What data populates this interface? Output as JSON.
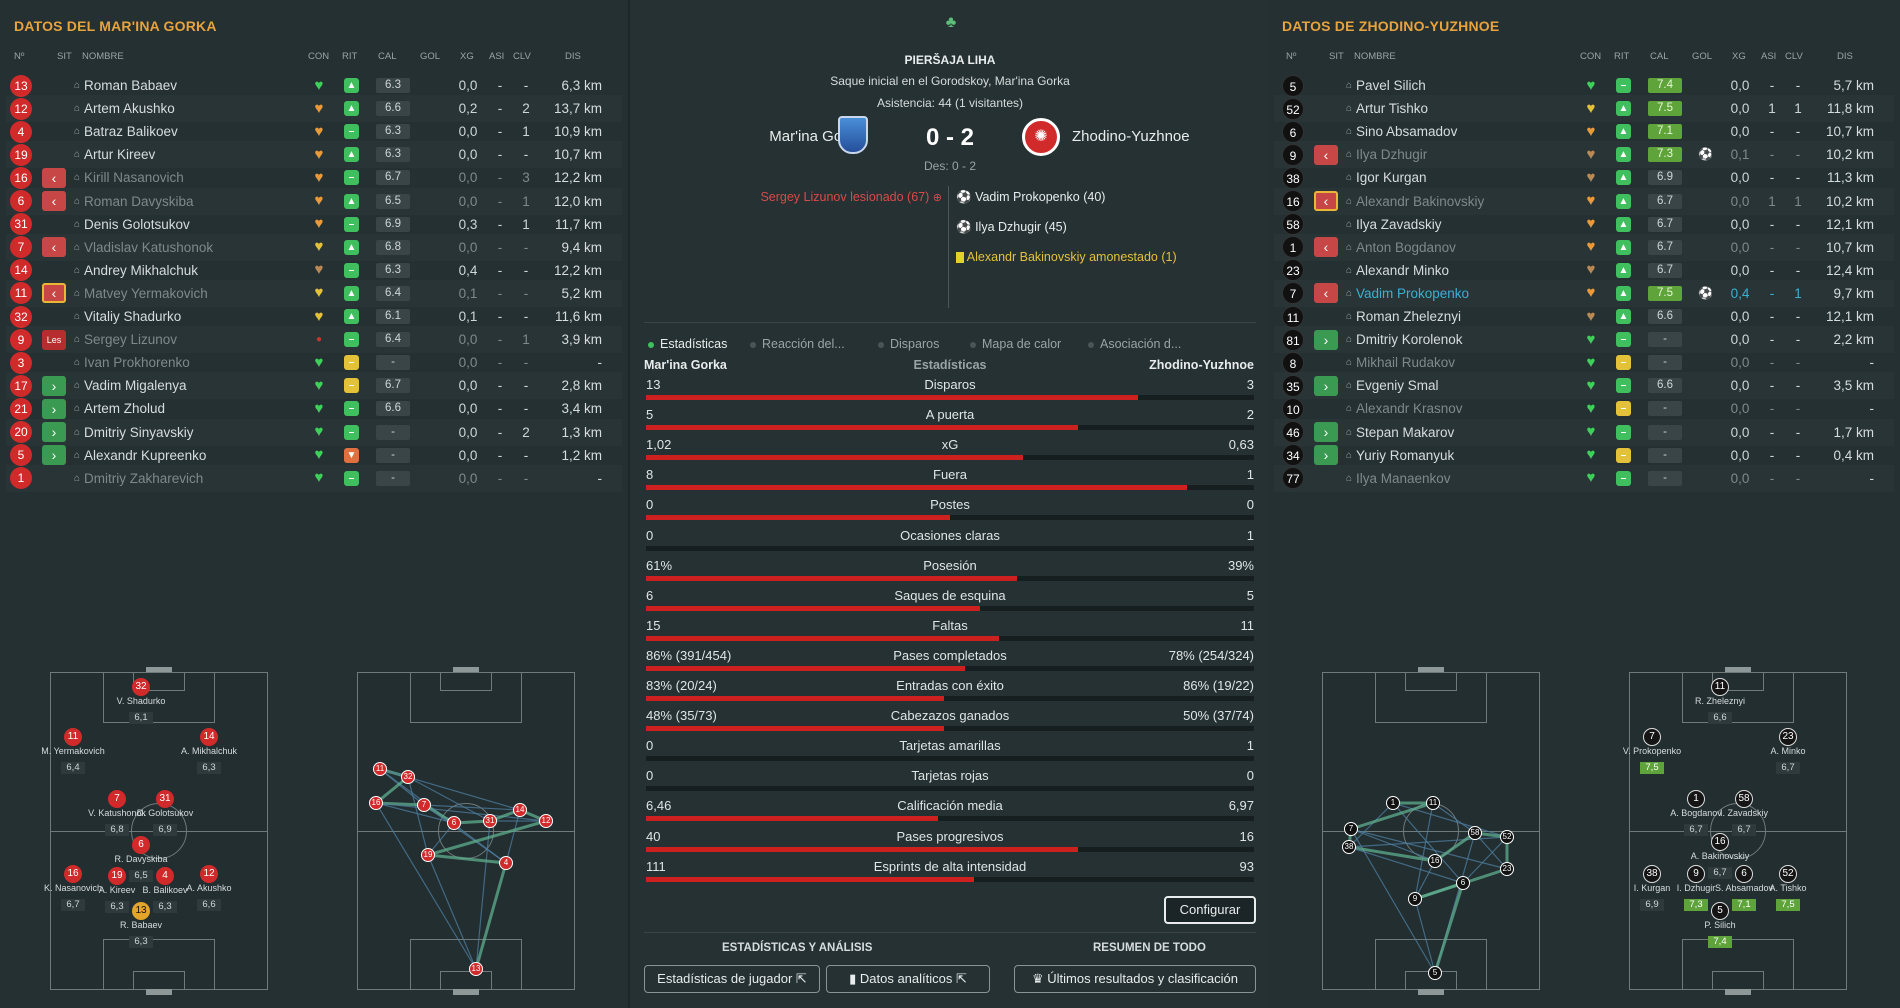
{
  "left": {
    "title": "DATOS DEL MAR'INA GORKA",
    "headers": {
      "num": "Nº",
      "sit": "SIT",
      "name": "NOMBRE",
      "con": "CON",
      "rit": "RIT",
      "cal": "CAL",
      "gol": "GOL",
      "xg": "XG",
      "asi": "ASI",
      "clv": "CLV",
      "dis": "DIS"
    },
    "players": [
      {
        "num": "13",
        "sit": "",
        "name": "Roman Babaev",
        "con": "green",
        "rit": "up",
        "cal": "6.3",
        "gol": "",
        "xg": "0,0",
        "asi": "-",
        "clv": "-",
        "dis": "6,3 km"
      },
      {
        "num": "12",
        "sit": "",
        "name": "Artem Akushko",
        "con": "orange",
        "rit": "up",
        "cal": "6.6",
        "gol": "",
        "xg": "0,2",
        "asi": "-",
        "clv": "2",
        "dis": "13,7 km"
      },
      {
        "num": "4",
        "sit": "",
        "name": "Batraz Balikoev",
        "con": "orange",
        "rit": "eq",
        "cal": "6.3",
        "gol": "",
        "xg": "0,0",
        "asi": "-",
        "clv": "1",
        "dis": "10,9 km"
      },
      {
        "num": "19",
        "sit": "",
        "name": "Artur Kireev",
        "con": "orange",
        "rit": "up",
        "cal": "6.3",
        "gol": "",
        "xg": "0,0",
        "asi": "-",
        "clv": "-",
        "dis": "10,7 km"
      },
      {
        "num": "16",
        "sit": "out",
        "name": "Kirill Nasanovich",
        "con": "orange",
        "rit": "eq",
        "cal": "6.7",
        "gol": "",
        "xg": "0,0",
        "asi": "-",
        "clv": "3",
        "dis": "12,2 km",
        "dim": true
      },
      {
        "num": "6",
        "sit": "out",
        "name": "Roman Davyskiba",
        "con": "orange",
        "rit": "up",
        "cal": "6.5",
        "gol": "",
        "xg": "0,0",
        "asi": "-",
        "clv": "1",
        "dis": "12,0 km",
        "dim": true
      },
      {
        "num": "31",
        "sit": "",
        "name": "Denis Golotsukov",
        "con": "orange",
        "rit": "eq",
        "cal": "6.9",
        "gol": "",
        "xg": "0,3",
        "asi": "-",
        "clv": "1",
        "dis": "11,7 km"
      },
      {
        "num": "7",
        "sit": "out",
        "name": "Vladislav Katushonok",
        "con": "yellow",
        "rit": "up",
        "cal": "6.8",
        "gol": "",
        "xg": "0,0",
        "asi": "-",
        "clv": "-",
        "dis": "9,4 km",
        "dim": true
      },
      {
        "num": "14",
        "sit": "",
        "name": "Andrey Mikhalchuk",
        "con": "brown",
        "rit": "eq",
        "cal": "6.3",
        "gol": "",
        "xg": "0,4",
        "asi": "-",
        "clv": "-",
        "dis": "12,2 km"
      },
      {
        "num": "11",
        "sit": "outy",
        "name": "Matvey Yermakovich",
        "con": "yellow",
        "rit": "up",
        "cal": "6.4",
        "gol": "",
        "xg": "0,1",
        "asi": "-",
        "clv": "-",
        "dis": "5,2 km",
        "dim": true
      },
      {
        "num": "32",
        "sit": "",
        "name": "Vitaliy Shadurko",
        "con": "yellow",
        "rit": "up",
        "cal": "6.1",
        "gol": "",
        "xg": "0,1",
        "asi": "-",
        "clv": "-",
        "dis": "11,6 km"
      },
      {
        "num": "9",
        "sit": "les",
        "sit_label": "Les",
        "name": "Sergey Lizunov",
        "con": "reddot",
        "rit": "eq",
        "cal": "6.4",
        "gol": "",
        "xg": "0,0",
        "asi": "-",
        "clv": "1",
        "dis": "3,9 km",
        "dim": true
      },
      {
        "num": "3",
        "sit": "",
        "name": "Ivan Prokhorenko",
        "con": "green",
        "rit": "eqy",
        "cal": "-",
        "gol": "",
        "xg": "0,0",
        "asi": "-",
        "clv": "-",
        "dis": "-",
        "dim": true
      },
      {
        "num": "17",
        "sit": "in",
        "name": "Vadim Migalenya",
        "con": "green",
        "rit": "eqy",
        "cal": "6.7",
        "gol": "",
        "xg": "0,0",
        "asi": "-",
        "clv": "-",
        "dis": "2,8 km"
      },
      {
        "num": "21",
        "sit": "in",
        "name": "Artem Zholud",
        "con": "green",
        "rit": "eq",
        "cal": "6.6",
        "gol": "",
        "xg": "0,0",
        "asi": "-",
        "clv": "-",
        "dis": "3,4 km"
      },
      {
        "num": "20",
        "sit": "in",
        "name": "Dmitriy Sinyavskiy",
        "con": "green",
        "rit": "eq",
        "cal": "-",
        "gol": "",
        "xg": "0,0",
        "asi": "-",
        "clv": "2",
        "dis": "1,3 km"
      },
      {
        "num": "5",
        "sit": "in",
        "name": "Alexandr Kupreenko",
        "con": "green",
        "rit": "down",
        "cal": "-",
        "gol": "",
        "xg": "0,0",
        "asi": "-",
        "clv": "-",
        "dis": "1,2 km"
      },
      {
        "num": "1",
        "sit": "",
        "name": "Dmitriy Zakharevich",
        "con": "green",
        "rit": "eq",
        "cal": "-",
        "gol": "",
        "xg": "0,0",
        "asi": "-",
        "clv": "-",
        "dis": "-",
        "dim": true
      }
    ],
    "formation": [
      {
        "num": "32",
        "name": "V. Shadurko",
        "rating": "6,1"
      },
      {
        "num": "11",
        "name": "M. Yermakovich",
        "rating": "6,4"
      },
      {
        "num": "14",
        "name": "A. Mikhalchuk",
        "rating": "6,3"
      },
      {
        "num": "7",
        "name": "V. Katushonok",
        "rating": "6,8"
      },
      {
        "num": "31",
        "name": "D. Golotsukov",
        "rating": "6,9"
      },
      {
        "num": "6",
        "name": "R. Davyskiba",
        "rating": "6,5"
      },
      {
        "num": "16",
        "name": "K. Nasanovich",
        "rating": "6,7"
      },
      {
        "num": "19",
        "name": "A. Kireev",
        "rating": "6,3"
      },
      {
        "num": "4",
        "name": "B. Balikoev",
        "rating": "6,3"
      },
      {
        "num": "12",
        "name": "A. Akushko",
        "rating": "6,6"
      },
      {
        "num": "13",
        "name": "R. Babaev",
        "rating": "6,3"
      }
    ],
    "network": [
      "11",
      "32",
      "16",
      "7",
      "6",
      "31",
      "14",
      "12",
      "19",
      "4",
      "13"
    ]
  },
  "right": {
    "title": "DATOS DE ZHODINO-YUZHNOE",
    "headers": {
      "num": "Nº",
      "sit": "SIT",
      "name": "NOMBRE",
      "con": "CON",
      "rit": "RIT",
      "cal": "CAL",
      "gol": "GOL",
      "xg": "XG",
      "asi": "ASI",
      "clv": "CLV",
      "dis": "DIS"
    },
    "players": [
      {
        "num": "5",
        "sit": "",
        "name": "Pavel Silich",
        "con": "green",
        "rit": "eq",
        "cal": "7.4",
        "calg": true,
        "gol": "",
        "xg": "0,0",
        "asi": "-",
        "clv": "-",
        "dis": "5,7 km"
      },
      {
        "num": "52",
        "sit": "",
        "name": "Artur Tishko",
        "con": "yellow",
        "rit": "up",
        "cal": "7.5",
        "calg": true,
        "gol": "",
        "xg": "0,0",
        "asi": "1",
        "clv": "1",
        "dis": "11,8 km"
      },
      {
        "num": "6",
        "sit": "",
        "name": "Sino Absamadov",
        "con": "orange",
        "rit": "up",
        "cal": "7.1",
        "calg": true,
        "gol": "",
        "xg": "0,0",
        "asi": "-",
        "clv": "-",
        "dis": "10,7 km"
      },
      {
        "num": "9",
        "sit": "out",
        "name": "Ilya Dzhugir",
        "con": "brown",
        "rit": "up",
        "cal": "7.3",
        "calg": true,
        "gol": "ball",
        "xg": "0,1",
        "asi": "-",
        "clv": "-",
        "dis": "10,2 km",
        "dim": true
      },
      {
        "num": "38",
        "sit": "",
        "name": "Igor Kurgan",
        "con": "brown",
        "rit": "up",
        "cal": "6.9",
        "gol": "",
        "xg": "0,0",
        "asi": "-",
        "clv": "-",
        "dis": "11,3 km"
      },
      {
        "num": "16",
        "sit": "outy",
        "name": "Alexandr Bakinovskiy",
        "con": "orange",
        "rit": "up",
        "cal": "6.7",
        "gol": "",
        "xg": "0,0",
        "asi": "1",
        "clv": "1",
        "dis": "10,2 km",
        "dim": true
      },
      {
        "num": "58",
        "sit": "",
        "name": "Ilya Zavadskiy",
        "con": "orange",
        "rit": "up",
        "cal": "6.7",
        "gol": "",
        "xg": "0,0",
        "asi": "-",
        "clv": "-",
        "dis": "12,1 km"
      },
      {
        "num": "1",
        "sit": "out",
        "name": "Anton Bogdanov",
        "con": "orange",
        "rit": "up",
        "cal": "6.7",
        "gol": "",
        "xg": "0,0",
        "asi": "-",
        "clv": "-",
        "dis": "10,7 km",
        "dim": true
      },
      {
        "num": "23",
        "sit": "",
        "name": "Alexandr Minko",
        "con": "brown",
        "rit": "up",
        "cal": "6.7",
        "gol": "",
        "xg": "0,0",
        "asi": "-",
        "clv": "-",
        "dis": "12,4 km"
      },
      {
        "num": "7",
        "sit": "out",
        "name": "Vadim Prokopenko",
        "con": "orange",
        "rit": "up",
        "cal": "7.5",
        "calg": true,
        "gol": "ball",
        "xg": "0,4",
        "asi": "-",
        "clv": "1",
        "dis": "9,7 km",
        "hi": true
      },
      {
        "num": "11",
        "sit": "",
        "name": "Roman Zheleznyi",
        "con": "brown",
        "rit": "up",
        "cal": "6.6",
        "gol": "",
        "xg": "0,0",
        "asi": "-",
        "clv": "-",
        "dis": "12,1 km"
      },
      {
        "num": "81",
        "sit": "in",
        "name": "Dmitriy Korolenok",
        "con": "green",
        "rit": "eq",
        "cal": "-",
        "gol": "",
        "xg": "0,0",
        "asi": "-",
        "clv": "-",
        "dis": "2,2 km"
      },
      {
        "num": "8",
        "sit": "",
        "name": "Mikhail Rudakov",
        "con": "green",
        "rit": "eqy",
        "cal": "-",
        "gol": "",
        "xg": "0,0",
        "asi": "-",
        "clv": "-",
        "dis": "-",
        "dim": true
      },
      {
        "num": "35",
        "sit": "in",
        "name": "Evgeniy Smal",
        "con": "green",
        "rit": "eq",
        "cal": "6.6",
        "gol": "",
        "xg": "0,0",
        "asi": "-",
        "clv": "-",
        "dis": "3,5 km"
      },
      {
        "num": "10",
        "sit": "",
        "name": "Alexandr Krasnov",
        "con": "green",
        "rit": "eqy",
        "cal": "-",
        "gol": "",
        "xg": "0,0",
        "asi": "-",
        "clv": "-",
        "dis": "-",
        "dim": true
      },
      {
        "num": "46",
        "sit": "in",
        "name": "Stepan Makarov",
        "con": "green",
        "rit": "eq",
        "cal": "-",
        "gol": "",
        "xg": "0,0",
        "asi": "-",
        "clv": "-",
        "dis": "1,7 km"
      },
      {
        "num": "34",
        "sit": "in",
        "name": "Yuriy Romanyuk",
        "con": "green",
        "rit": "eqy",
        "cal": "-",
        "gol": "",
        "xg": "0,0",
        "asi": "-",
        "clv": "-",
        "dis": "0,4 km"
      },
      {
        "num": "77",
        "sit": "",
        "name": "Ilya Manaenkov",
        "con": "green",
        "rit": "eq",
        "cal": "-",
        "gol": "",
        "xg": "0,0",
        "asi": "-",
        "clv": "-",
        "dis": "-",
        "dim": true
      }
    ],
    "formation": [
      {
        "num": "11",
        "name": "R. Zheleznyi",
        "rating": "6,6"
      },
      {
        "num": "7",
        "name": "V. Prokopenko",
        "rating": "7,5",
        "g": true
      },
      {
        "num": "23",
        "name": "A. Minko",
        "rating": "6,7"
      },
      {
        "num": "1",
        "name": "A. Bogdanov",
        "rating": "6,7"
      },
      {
        "num": "58",
        "name": "I. Zavadskiy",
        "rating": "6,7"
      },
      {
        "num": "16",
        "name": "A. Bakinovskiy",
        "rating": "6,7"
      },
      {
        "num": "38",
        "name": "I. Kurgan",
        "rating": "6,9"
      },
      {
        "num": "9",
        "name": "I. Dzhugir",
        "rating": "7,3",
        "g": true
      },
      {
        "num": "6",
        "name": "S. Absamadov",
        "rating": "7,1",
        "g": true
      },
      {
        "num": "52",
        "name": "A. Tishko",
        "rating": "7,5",
        "g": true
      },
      {
        "num": "5",
        "name": "P. Silich",
        "rating": "7,4",
        "g": true
      }
    ],
    "network": [
      "1",
      "11",
      "7",
      "38",
      "16",
      "58",
      "52",
      "23",
      "9",
      "6",
      "5"
    ]
  },
  "center": {
    "league": "PIERŠAJA LIHA",
    "kickoff": "Saque inicial en el Gorodskoy, Mar'ina Gorka",
    "attendance": "Asistencia: 44 (1 visitantes)",
    "home": "Mar'ina Gorka",
    "away": "Zhodino-Yuzhnoe",
    "score": "0 - 2",
    "halftime": "Des: 0 - 2",
    "events_home": [
      {
        "text": "Sergey Lizunov lesionado (67)"
      }
    ],
    "events_away": [
      {
        "text": "Vadim Prokopenko (40)"
      },
      {
        "text": "Ilya Dzhugir (45)"
      },
      {
        "text": "Alexandr Bakinovskiy amonestado (1)"
      }
    ],
    "tabs": [
      "Estadísticas",
      "Reacción del...",
      "Disparos",
      "Mapa de calor",
      "Asociación d..."
    ],
    "stats_header": {
      "home": "Mar'ina Gorka",
      "mid": "Estadísticas",
      "away": "Zhodino-Yuzhnoe"
    },
    "stats": [
      {
        "label": "Disparos",
        "home": "13",
        "away": "3",
        "share": 0.81
      },
      {
        "label": "A puerta",
        "home": "5",
        "away": "2",
        "share": 0.71
      },
      {
        "label": "xG",
        "home": "1,02",
        "away": "0,63",
        "share": 0.62
      },
      {
        "label": "Fuera",
        "home": "8",
        "away": "1",
        "share": 0.89
      },
      {
        "label": "Postes",
        "home": "0",
        "away": "0",
        "share": 0.5
      },
      {
        "label": "Ocasiones claras",
        "home": "0",
        "away": "1",
        "share": 0.0
      },
      {
        "label": "Posesión",
        "home": "61%",
        "away": "39%",
        "share": 0.61
      },
      {
        "label": "Saques de esquina",
        "home": "6",
        "away": "5",
        "share": 0.55
      },
      {
        "label": "Faltas",
        "home": "15",
        "away": "11",
        "share": 0.58
      },
      {
        "label": "Pases completados",
        "home": "86% (391/454)",
        "away": "78% (254/324)",
        "share": 0.525
      },
      {
        "label": "Entradas con éxito",
        "home": "83% (20/24)",
        "away": "86% (19/22)",
        "share": 0.49
      },
      {
        "label": "Cabezazos ganados",
        "home": "48% (35/73)",
        "away": "50% (37/74)",
        "share": 0.49
      },
      {
        "label": "Tarjetas amarillas",
        "home": "0",
        "away": "1",
        "share": 0.0
      },
      {
        "label": "Tarjetas rojas",
        "home": "0",
        "away": "0",
        "share": 0.0
      },
      {
        "label": "Calificación media",
        "home": "6,46",
        "away": "6,97",
        "share": 0.48
      },
      {
        "label": "Pases progresivos",
        "home": "40",
        "away": "16",
        "share": 0.71
      },
      {
        "label": "Esprints de alta intensidad",
        "home": "111",
        "away": "93",
        "share": 0.54
      }
    ],
    "configure": "Configurar",
    "section_left": "ESTADÍSTICAS Y ANÁLISIS",
    "section_right": "RESUMEN DE TODO",
    "btn_player_stats": "Estadísticas de jugador",
    "btn_analytics": "Datos analíticos",
    "btn_results": "Últimos resultados y clasificación"
  }
}
